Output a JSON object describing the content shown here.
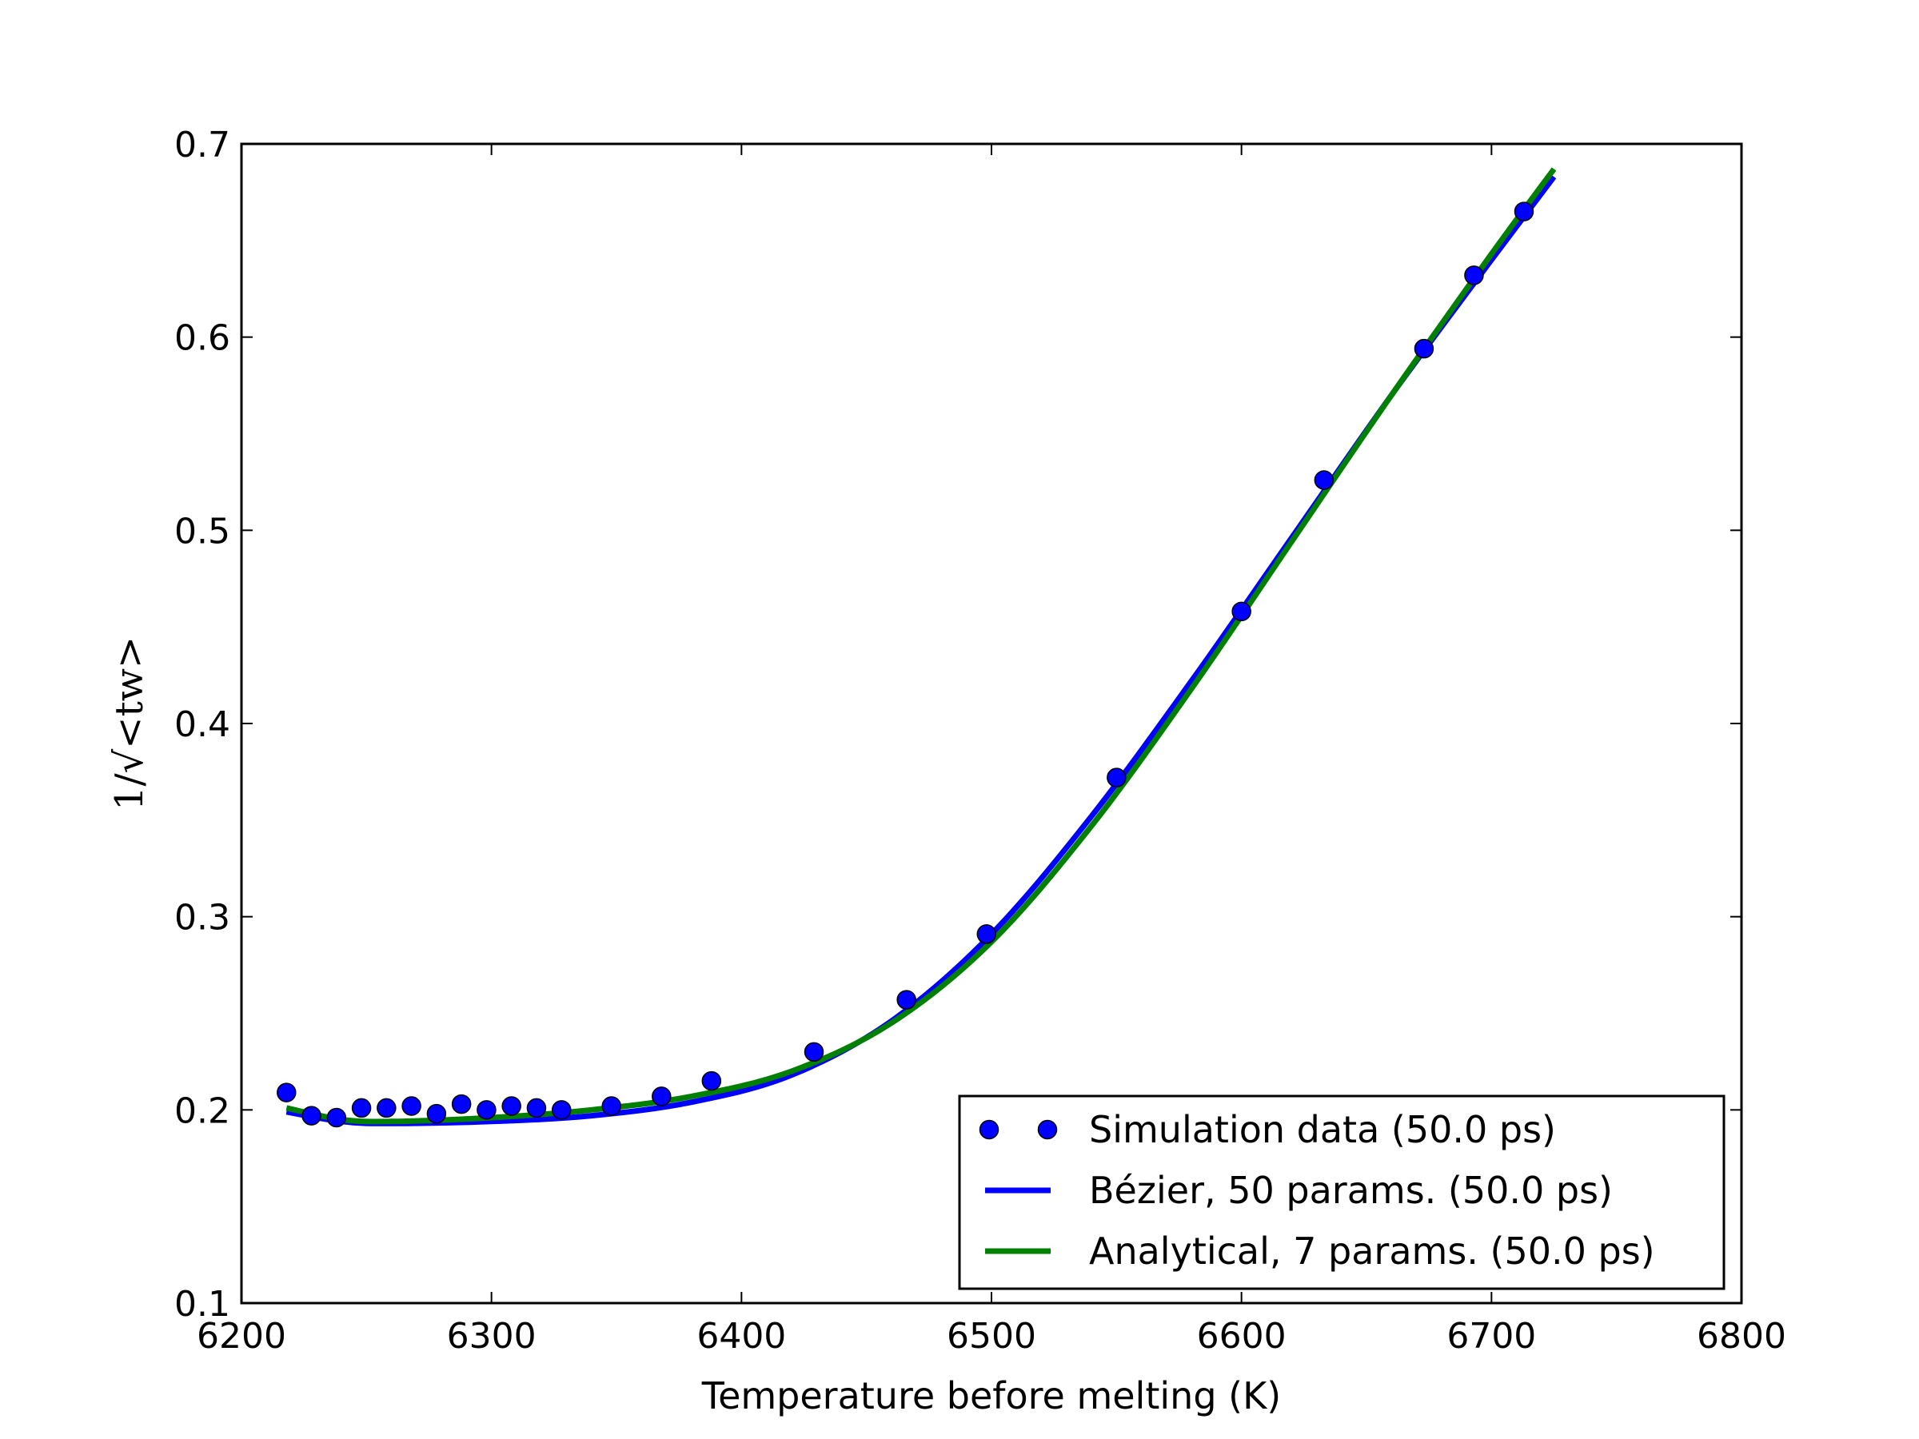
{
  "chart_data": {
    "type": "line",
    "xlabel": "Temperature before melting (K)",
    "ylabel": "1/√<tw>",
    "xlim": [
      6200,
      6800
    ],
    "ylim": [
      0.1,
      0.7
    ],
    "xticks": [
      "6200",
      "6300",
      "6400",
      "6500",
      "6600",
      "6700",
      "6800"
    ],
    "yticks": [
      "0.1",
      "0.2",
      "0.3",
      "0.4",
      "0.5",
      "0.6",
      "0.7"
    ],
    "grid": false,
    "legend_position": "lower-right",
    "series": [
      {
        "name": "Simulation data (50.0 ps)",
        "kind": "scatter",
        "color": "#0000ff",
        "points": [
          [
            6218,
            0.209
          ],
          [
            6228,
            0.197
          ],
          [
            6238,
            0.196
          ],
          [
            6248,
            0.201
          ],
          [
            6258,
            0.201
          ],
          [
            6268,
            0.202
          ],
          [
            6278,
            0.198
          ],
          [
            6288,
            0.203
          ],
          [
            6298,
            0.2
          ],
          [
            6308,
            0.202
          ],
          [
            6318,
            0.201
          ],
          [
            6328,
            0.2
          ],
          [
            6348,
            0.202
          ],
          [
            6368,
            0.207
          ],
          [
            6388,
            0.215
          ],
          [
            6429,
            0.23
          ],
          [
            6466,
            0.257
          ],
          [
            6498,
            0.291
          ],
          [
            6550,
            0.372
          ],
          [
            6600,
            0.458
          ],
          [
            6633,
            0.526
          ],
          [
            6673,
            0.594
          ],
          [
            6693,
            0.632
          ],
          [
            6713,
            0.665
          ]
        ]
      },
      {
        "name": "Bézier, 50 params. (50.0 ps)",
        "kind": "line",
        "color": "#0000ff",
        "points": [
          [
            6218,
            0.199
          ],
          [
            6240,
            0.194
          ],
          [
            6260,
            0.193
          ],
          [
            6300,
            0.194
          ],
          [
            6340,
            0.197
          ],
          [
            6380,
            0.204
          ],
          [
            6420,
            0.218
          ],
          [
            6460,
            0.246
          ],
          [
            6500,
            0.291
          ],
          [
            6540,
            0.352
          ],
          [
            6580,
            0.422
          ],
          [
            6620,
            0.496
          ],
          [
            6660,
            0.57
          ],
          [
            6700,
            0.64
          ],
          [
            6725,
            0.683
          ]
        ]
      },
      {
        "name": "Analytical, 7 params. (50.0 ps)",
        "kind": "line",
        "color": "#008000",
        "points": [
          [
            6218,
            0.201
          ],
          [
            6240,
            0.195
          ],
          [
            6260,
            0.194
          ],
          [
            6300,
            0.196
          ],
          [
            6340,
            0.2
          ],
          [
            6380,
            0.207
          ],
          [
            6420,
            0.22
          ],
          [
            6460,
            0.245
          ],
          [
            6500,
            0.287
          ],
          [
            6540,
            0.347
          ],
          [
            6580,
            0.418
          ],
          [
            6620,
            0.494
          ],
          [
            6660,
            0.57
          ],
          [
            6700,
            0.643
          ],
          [
            6725,
            0.687
          ]
        ]
      }
    ]
  }
}
